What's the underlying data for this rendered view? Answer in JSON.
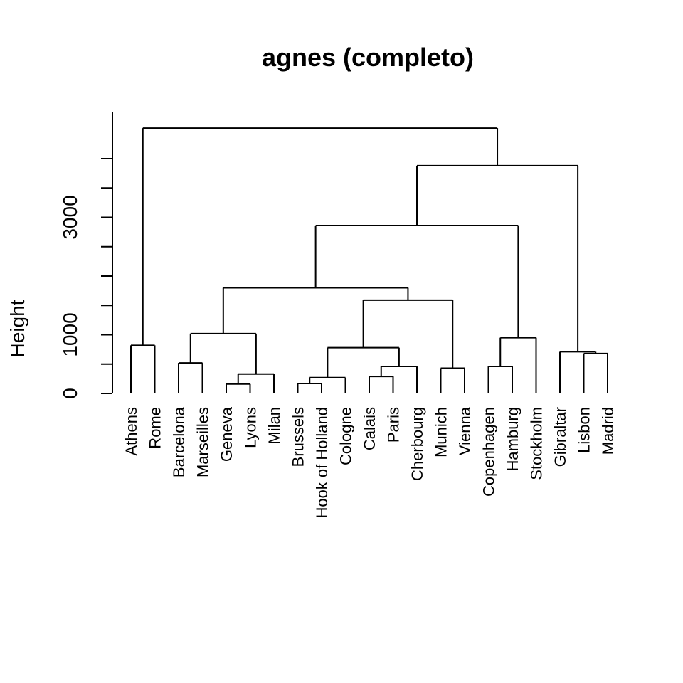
{
  "chart_data": {
    "type": "dendrogram",
    "title": "agnes (completo)",
    "ylabel": "Height",
    "ylim": [
      0,
      4800
    ],
    "yticks": [
      0,
      500,
      1000,
      1500,
      2000,
      2500,
      3000,
      3500,
      4000
    ],
    "ytick_labels": [
      {
        "value": 0,
        "label": "0"
      },
      {
        "value": 1000,
        "label": "1000"
      },
      {
        "value": 3000,
        "label": "3000"
      }
    ],
    "leaves": [
      "Athens",
      "Rome",
      "Barcelona",
      "Marseilles",
      "Geneva",
      "Lyons",
      "Milan",
      "Brussels",
      "Hook of Holland",
      "Cologne",
      "Calais",
      "Paris",
      "Cherbourg",
      "Munich",
      "Vienna",
      "Copenhagen",
      "Hamburg",
      "Stockholm",
      "Gibraltar",
      "Lisbon",
      "Madrid"
    ],
    "merges": [
      {
        "left": "Athens",
        "right": "Rome",
        "height": 820
      },
      {
        "left": "Barcelona",
        "right": "Marseilles",
        "height": 520
      },
      {
        "left": "Geneva",
        "right": "Lyons",
        "height": 160
      },
      {
        "left": [
          "Geneva",
          "Lyons"
        ],
        "right": "Milan",
        "height": 330
      },
      {
        "left": [
          "Barcelona",
          "Marseilles"
        ],
        "right": [
          "Geneva",
          "Lyons",
          "Milan"
        ],
        "height": 1020
      },
      {
        "left": "Brussels",
        "right": "Hook of Holland",
        "height": 170
      },
      {
        "left": [
          "Brussels",
          "Hook of Holland"
        ],
        "right": "Cologne",
        "height": 270
      },
      {
        "left": "Calais",
        "right": "Paris",
        "height": 290
      },
      {
        "left": [
          "Calais",
          "Paris"
        ],
        "right": "Cherbourg",
        "height": 460
      },
      {
        "left": [
          "Brussels",
          "Hook of Holland",
          "Cologne"
        ],
        "right": [
          "Calais",
          "Paris",
          "Cherbourg"
        ],
        "height": 780
      },
      {
        "left": "Munich",
        "right": "Vienna",
        "height": 430
      },
      {
        "left": [
          "Brussels",
          "Hook of Holland",
          "Cologne",
          "Calais",
          "Paris",
          "Cherbourg"
        ],
        "right": [
          "Munich",
          "Vienna"
        ],
        "height": 1590
      },
      {
        "left": [
          "Barcelona",
          "Marseilles",
          "Geneva",
          "Lyons",
          "Milan"
        ],
        "right": [
          "Brussels",
          "Hook of Holland",
          "Cologne",
          "Calais",
          "Paris",
          "Cherbourg",
          "Munich",
          "Vienna"
        ],
        "height": 1800
      },
      {
        "left": "Copenhagen",
        "right": "Hamburg",
        "height": 460
      },
      {
        "left": [
          "Copenhagen",
          "Hamburg"
        ],
        "right": "Stockholm",
        "height": 950
      },
      {
        "left": [
          "Barcelona",
          "Marseilles",
          "Geneva",
          "Lyons",
          "Milan",
          "Brussels",
          "Hook of Holland",
          "Cologne",
          "Calais",
          "Paris",
          "Cherbourg",
          "Munich",
          "Vienna"
        ],
        "right": [
          "Copenhagen",
          "Hamburg",
          "Stockholm"
        ],
        "height": 2860
      },
      {
        "left": "Lisbon",
        "right": "Madrid",
        "height": 680
      },
      {
        "left": "Gibraltar",
        "right": [
          "Lisbon",
          "Madrid"
        ],
        "height": 710
      },
      {
        "left": [
          "Barcelona",
          "Marseilles",
          "Geneva",
          "Lyons",
          "Milan",
          "Brussels",
          "Hook of Holland",
          "Cologne",
          "Calais",
          "Paris",
          "Cherbourg",
          "Munich",
          "Vienna",
          "Copenhagen",
          "Hamburg",
          "Stockholm"
        ],
        "right": [
          "Gibraltar",
          "Lisbon",
          "Madrid"
        ],
        "height": 3880
      },
      {
        "left": [
          "Athens",
          "Rome"
        ],
        "right": [
          "Barcelona",
          "Marseilles",
          "Geneva",
          "Lyons",
          "Milan",
          "Brussels",
          "Hook of Holland",
          "Cologne",
          "Calais",
          "Paris",
          "Cherbourg",
          "Munich",
          "Vienna",
          "Copenhagen",
          "Hamburg",
          "Stockholm",
          "Gibraltar",
          "Lisbon",
          "Madrid"
        ],
        "height": 4520
      }
    ]
  }
}
